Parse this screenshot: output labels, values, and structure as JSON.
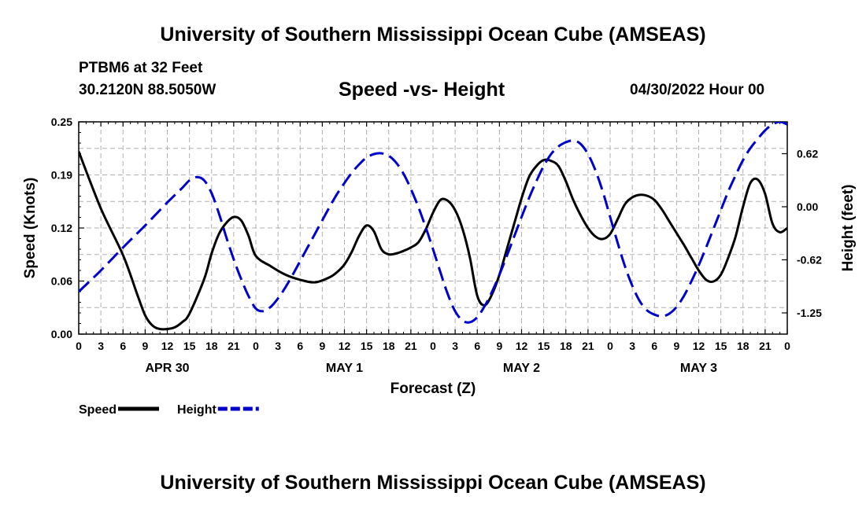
{
  "header": {
    "title": "University of Southern Mississippi Ocean Cube (AMSEAS)",
    "station": "PTBM6 at 32 Feet",
    "coordinates": "30.2120N  88.5050W",
    "subtitle": "Speed -vs- Height",
    "datetime": "04/30/2022 Hour 00"
  },
  "footer": {
    "title": "University of Southern Mississippi Ocean Cube (AMSEAS)"
  },
  "chart_data": {
    "type": "line",
    "title": "Speed -vs- Height",
    "xlabel": "Forecast (Z)",
    "ylabel": "Speed (Knots)",
    "y2label": "Height (feet)",
    "xlim": [
      0,
      96
    ],
    "ylim": [
      0,
      0.25
    ],
    "y2lim": [
      -1.5,
      1.0
    ],
    "grid": true,
    "x_ticks": [
      0,
      3,
      6,
      9,
      12,
      15,
      18,
      21,
      24,
      27,
      30,
      33,
      36,
      39,
      42,
      45,
      48,
      51,
      54,
      57,
      60,
      63,
      66,
      69,
      72,
      75,
      78,
      81,
      84,
      87,
      90,
      93,
      96
    ],
    "x_tick_labels": [
      "0",
      "3",
      "6",
      "9",
      "12",
      "15",
      "18",
      "21",
      "0",
      "3",
      "6",
      "9",
      "12",
      "15",
      "18",
      "21",
      "0",
      "3",
      "6",
      "9",
      "12",
      "15",
      "18",
      "21",
      "0",
      "3",
      "6",
      "9",
      "12",
      "15",
      "18",
      "21",
      "0"
    ],
    "day_labels": [
      {
        "x": 12,
        "label": "APR 30"
      },
      {
        "x": 36,
        "label": "MAY 1"
      },
      {
        "x": 60,
        "label": "MAY 2"
      },
      {
        "x": 84,
        "label": "MAY 3"
      }
    ],
    "y_ticks": [
      0,
      0.0625,
      0.125,
      0.1875,
      0.25
    ],
    "y_tick_labels": [
      "0.00",
      "0.06",
      "0.12",
      "0.19",
      "0.25"
    ],
    "y2_ticks": [
      0.625,
      0.0,
      -0.625,
      -1.25
    ],
    "y2_tick_labels": [
      "0.62",
      "0.00",
      "-0.62",
      "-1.25"
    ],
    "legend_position": "bottom-left",
    "series": [
      {
        "name": "Speed",
        "axis": "left",
        "color": "#000000",
        "dash": "solid",
        "x": [
          0,
          3,
          6,
          8,
          9,
          10,
          11,
          12,
          13,
          14,
          15,
          17,
          18,
          19,
          20,
          21,
          22,
          23,
          24,
          26,
          28,
          30,
          32,
          34,
          35,
          36,
          37,
          38,
          39,
          40,
          41,
          42,
          43,
          44,
          45,
          46,
          47,
          48,
          49,
          50,
          51,
          52,
          53,
          54,
          55,
          56,
          57,
          58,
          59,
          60,
          61,
          62,
          63,
          64,
          65,
          66,
          67,
          68,
          69,
          70,
          71,
          72,
          73,
          74,
          75,
          76,
          77,
          78,
          79,
          80,
          81,
          82,
          83,
          84,
          85,
          86,
          87,
          88,
          89,
          90,
          91,
          92,
          93,
          94,
          95,
          96
        ],
        "y": [
          0.215,
          0.148,
          0.093,
          0.045,
          0.022,
          0.01,
          0.006,
          0.006,
          0.008,
          0.014,
          0.024,
          0.065,
          0.095,
          0.118,
          0.131,
          0.138,
          0.134,
          0.116,
          0.092,
          0.08,
          0.07,
          0.064,
          0.061,
          0.067,
          0.073,
          0.082,
          0.097,
          0.116,
          0.128,
          0.121,
          0.1,
          0.094,
          0.095,
          0.098,
          0.102,
          0.108,
          0.123,
          0.143,
          0.158,
          0.157,
          0.146,
          0.124,
          0.09,
          0.045,
          0.034,
          0.047,
          0.07,
          0.1,
          0.13,
          0.16,
          0.185,
          0.198,
          0.205,
          0.204,
          0.198,
          0.18,
          0.158,
          0.14,
          0.125,
          0.115,
          0.112,
          0.118,
          0.135,
          0.153,
          0.161,
          0.164,
          0.163,
          0.158,
          0.147,
          0.133,
          0.119,
          0.105,
          0.09,
          0.075,
          0.064,
          0.062,
          0.07,
          0.09,
          0.115,
          0.15,
          0.178,
          0.182,
          0.165,
          0.13,
          0.12,
          0.125
        ]
      },
      {
        "name": "Height",
        "axis": "right",
        "color": "#0000cc",
        "dash": "dashed",
        "x": [
          0,
          3,
          6,
          9,
          12,
          14,
          15,
          16,
          17,
          18,
          19,
          20,
          21,
          22,
          23,
          24,
          25,
          26,
          27,
          28,
          29,
          30,
          31,
          32,
          33,
          34,
          35,
          36,
          37,
          38,
          39,
          40,
          41,
          42,
          43,
          44,
          45,
          46,
          47,
          48,
          49,
          50,
          51,
          52,
          53,
          54,
          55,
          56,
          57,
          58,
          59,
          60,
          61,
          62,
          63,
          64,
          65,
          66,
          67,
          68,
          69,
          70,
          71,
          72,
          73,
          74,
          75,
          76,
          77,
          78,
          79,
          80,
          81,
          82,
          83,
          84,
          85,
          86,
          87,
          88,
          89,
          90,
          91,
          92,
          93,
          94,
          95,
          96
        ],
        "y": [
          -1.0,
          -0.75,
          -0.48,
          -0.22,
          0.05,
          0.22,
          0.31,
          0.35,
          0.31,
          0.16,
          -0.08,
          -0.36,
          -0.62,
          -0.85,
          -1.05,
          -1.2,
          -1.23,
          -1.18,
          -1.08,
          -0.95,
          -0.8,
          -0.64,
          -0.48,
          -0.32,
          -0.16,
          0.0,
          0.15,
          0.28,
          0.4,
          0.5,
          0.58,
          0.62,
          0.63,
          0.6,
          0.52,
          0.39,
          0.21,
          0.0,
          -0.24,
          -0.5,
          -0.77,
          -1.03,
          -1.23,
          -1.34,
          -1.36,
          -1.3,
          -1.17,
          -1.0,
          -0.8,
          -0.58,
          -0.35,
          -0.12,
          0.1,
          0.3,
          0.48,
          0.62,
          0.71,
          0.76,
          0.78,
          0.74,
          0.62,
          0.43,
          0.18,
          -0.12,
          -0.42,
          -0.7,
          -0.93,
          -1.11,
          -1.22,
          -1.27,
          -1.29,
          -1.26,
          -1.18,
          -1.05,
          -0.88,
          -0.69,
          -0.48,
          -0.26,
          -0.04,
          0.18,
          0.37,
          0.55,
          0.69,
          0.8,
          0.9,
          0.97,
          1.0,
          0.97
        ]
      }
    ],
    "legend": [
      {
        "label": "Speed",
        "color": "#000000",
        "dash": "solid"
      },
      {
        "label": "Height",
        "color": "#0000cc",
        "dash": "dashed"
      }
    ]
  }
}
